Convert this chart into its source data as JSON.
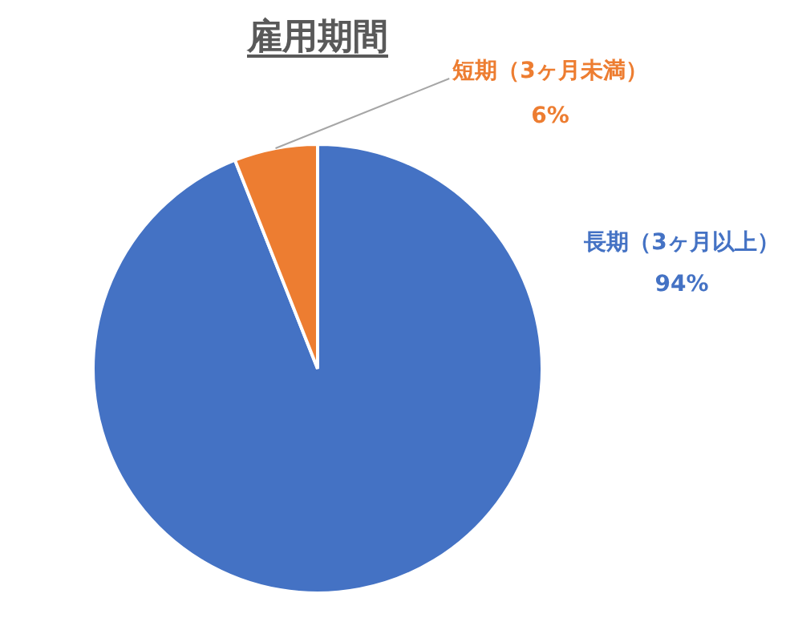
{
  "chart_data": {
    "type": "pie",
    "title": "雇用期間",
    "categories": [
      "長期（3ヶ月以上）",
      "短期（3ヶ月未満）"
    ],
    "values": [
      94,
      6
    ],
    "value_labels": [
      "94%",
      "6%"
    ],
    "colors": [
      "#4472c4",
      "#ed7d31"
    ],
    "legend": false
  }
}
